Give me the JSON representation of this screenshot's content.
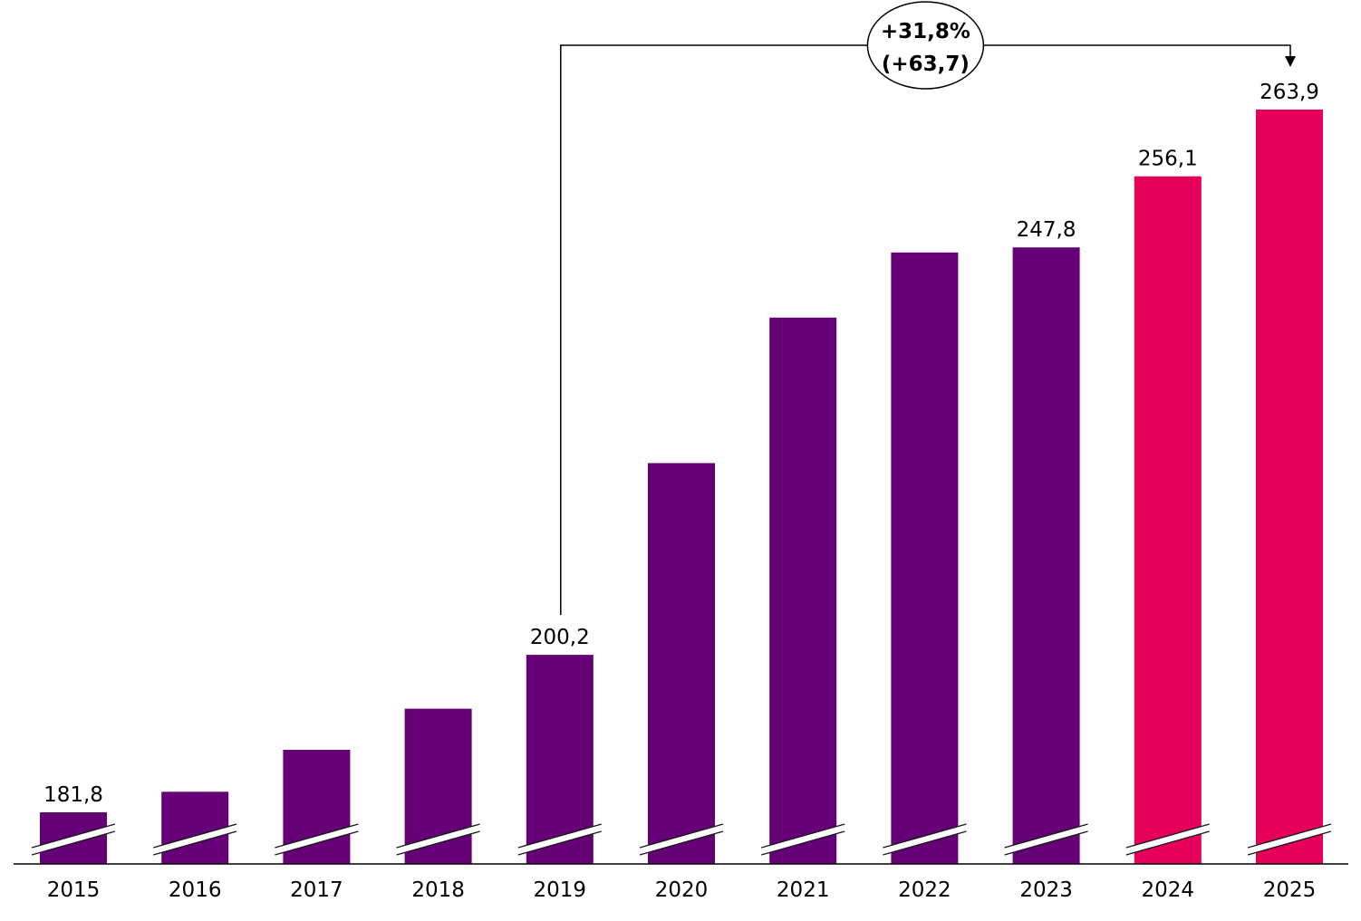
{
  "chart_data": {
    "type": "bar",
    "categories": [
      "2015",
      "2016",
      "2017",
      "2018",
      "2019",
      "2020",
      "2021",
      "2022",
      "2023",
      "2024",
      "2025"
    ],
    "values": [
      181.8,
      184.2,
      189.1,
      193.9,
      200.2,
      222.6,
      239.6,
      247.2,
      247.8,
      256.1,
      263.9
    ],
    "value_labels": [
      "181,8",
      "",
      "",
      "",
      "200,2",
      "",
      "",
      "",
      "247,8",
      "256,1",
      "263,9"
    ],
    "bar_colors": [
      "#660077",
      "#660077",
      "#660077",
      "#660077",
      "#660077",
      "#660077",
      "#660077",
      "#660077",
      "#660077",
      "#e5005a",
      "#e5005a"
    ],
    "axis_break": true,
    "grid": false,
    "title": "",
    "xlabel": "",
    "ylabel": "",
    "annotation": {
      "from_category": "2019",
      "to_category": "2025",
      "line1": "+31,8%",
      "line2": "(+63,7)"
    }
  }
}
